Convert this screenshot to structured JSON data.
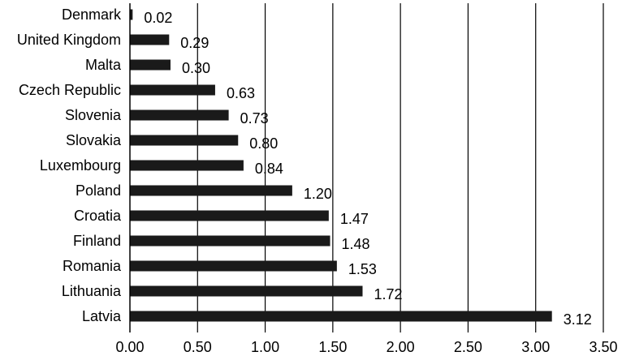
{
  "chart_data": {
    "type": "bar",
    "orientation": "horizontal",
    "categories": [
      "Denmark",
      "United Kingdom",
      "Malta",
      "Czech Republic",
      "Slovenia",
      "Slovakia",
      "Luxembourg",
      "Poland",
      "Croatia",
      "Finland",
      "Romania",
      "Lithuania",
      "Latvia"
    ],
    "values": [
      0.02,
      0.29,
      0.3,
      0.63,
      0.73,
      0.8,
      0.84,
      1.2,
      1.47,
      1.48,
      1.53,
      1.72,
      3.12
    ],
    "value_labels": [
      "0.02",
      "0.29",
      "0.30",
      "0.63",
      "0.73",
      "0.80",
      "0.84",
      "1.20",
      "1.47",
      "1.48",
      "1.53",
      "1.72",
      "3.12"
    ],
    "xlim": [
      0,
      3.5
    ],
    "x_ticks": [
      0,
      0.5,
      1.0,
      1.5,
      2.0,
      2.5,
      3.0,
      3.5
    ],
    "x_tick_labels": [
      "0.00",
      "0.50",
      "1.00",
      "1.50",
      "2.00",
      "2.50",
      "3.00",
      "3.50"
    ],
    "grid": "vertical",
    "bar_color": "#1a1a1a",
    "grid_color": "#000000"
  }
}
